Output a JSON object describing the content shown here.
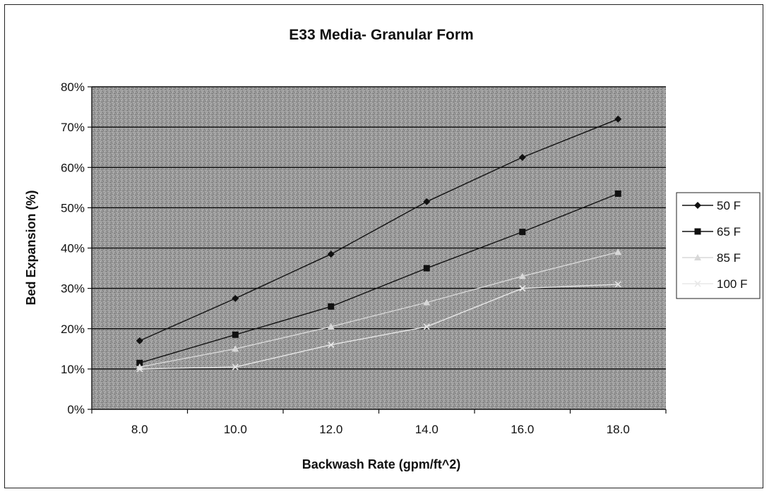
{
  "chart_data": {
    "type": "line",
    "title": "E33 Media- Granular Form",
    "xlabel": "Backwash Rate (gpm/ft^2)",
    "ylabel": "Bed Expansion (%)",
    "x": [
      8.0,
      10.0,
      12.0,
      14.0,
      16.0,
      18.0
    ],
    "x_tick_labels": [
      "8.0",
      "10.0",
      "12.0",
      "14.0",
      "16.0",
      "18.0"
    ],
    "y_tick_labels": [
      "0%",
      "10%",
      "20%",
      "30%",
      "40%",
      "50%",
      "60%",
      "70%",
      "80%"
    ],
    "ylim": [
      0,
      80
    ],
    "grid": true,
    "legend_position": "right",
    "series": [
      {
        "name": "50 F",
        "marker": "diamond",
        "color": "#111111",
        "values": [
          17,
          27.5,
          38.5,
          51.5,
          62.5,
          72
        ]
      },
      {
        "name": "65 F",
        "marker": "square",
        "color": "#111111",
        "values": [
          11.5,
          18.5,
          25.5,
          35,
          44,
          53.5
        ]
      },
      {
        "name": "85 F",
        "marker": "triangle",
        "color": "#d8d8d8",
        "values": [
          10.5,
          15,
          20.5,
          26.5,
          33,
          39
        ]
      },
      {
        "name": "100 F",
        "marker": "x",
        "color": "#e8e8e8",
        "values": [
          10,
          10.5,
          16,
          20.5,
          30,
          31
        ]
      }
    ]
  }
}
